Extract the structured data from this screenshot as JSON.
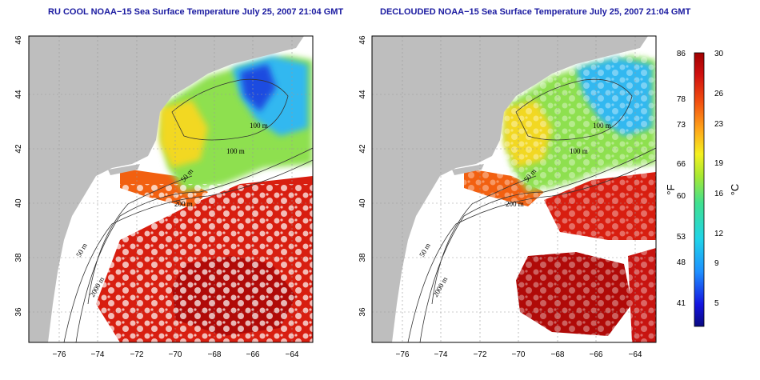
{
  "titles": {
    "left": "RU COOL NOAA−15 Sea Surface Temperature July 25, 2007 21:04 GMT",
    "right": "DECLOUDED NOAA−15 Sea Surface Temperature July 25, 2007 21:04 GMT"
  },
  "axes": {
    "lon_ticks": [
      "−76",
      "−74",
      "−72",
      "−70",
      "−68",
      "−66",
      "−64"
    ],
    "lat_ticks": [
      "36",
      "38",
      "40",
      "42",
      "44",
      "46"
    ]
  },
  "contour_labels": [
    "100 m",
    "100 m",
    "50 m",
    "200 m",
    "50 m",
    "2000 m"
  ],
  "colorbar": {
    "fahrenheit_ticks": [
      "86",
      "78",
      "73",
      "66",
      "60",
      "53",
      "48",
      "41"
    ],
    "celsius_ticks": [
      "30",
      "26",
      "23",
      "19",
      "16",
      "12",
      "9",
      "5"
    ],
    "fahrenheit_unit": "°F",
    "celsius_unit": "°C"
  },
  "colors": {
    "land": "#bebebe",
    "cloud": "#ffffff",
    "title": "#1a1aa0"
  }
}
